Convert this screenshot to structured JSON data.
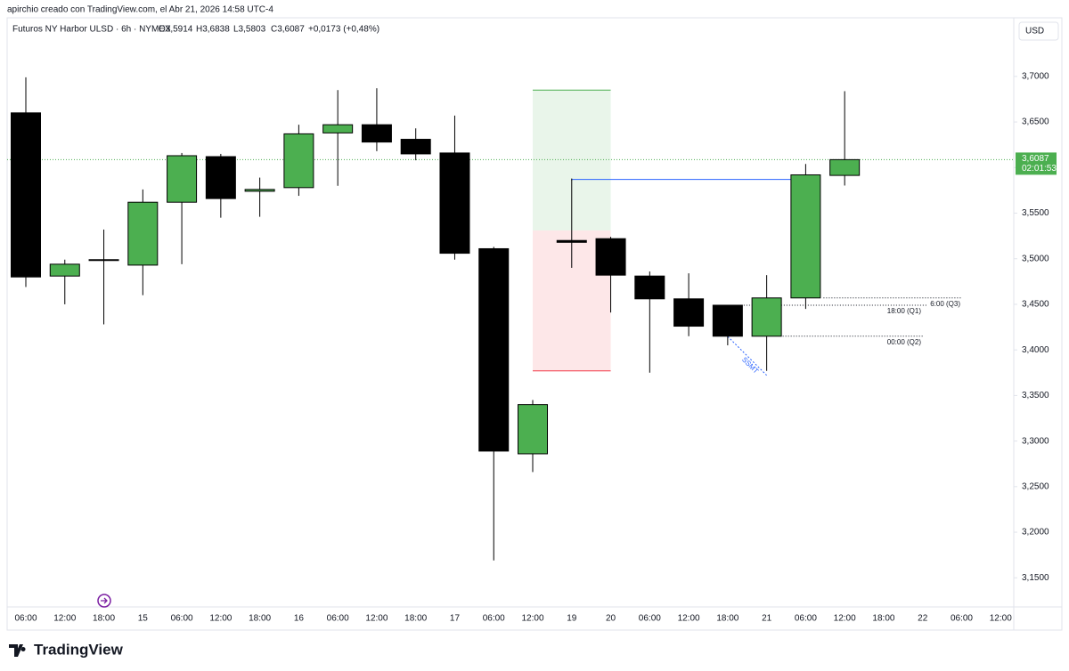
{
  "chart_data": {
    "type": "candlestick",
    "credit": "apirchio creado con TradingView.com, el Abr 21, 2026 14:58 UTC-4",
    "symbol": "Futuros NY Harbor ULSD · 6h · NYMEX",
    "ohlc_texts": [
      "O3,5914",
      "H3,6838",
      "L3,5803",
      "C3,6087",
      "+0,0173 (+0,48%)"
    ],
    "currency": "USD",
    "brand": "TradingView",
    "categories": [
      "06:00",
      "12:00",
      "18:00",
      "15",
      "06:00",
      "12:00",
      "18:00",
      "16",
      "06:00",
      "12:00",
      "18:00",
      "17",
      "06:00",
      "12:00",
      "19",
      "20",
      "06:00",
      "12:00",
      "18:00",
      "21",
      "06:00",
      "12:00",
      "18:00",
      "22",
      "06:00",
      "12:00"
    ],
    "open": [
      3.66,
      3.481,
      3.499,
      3.493,
      3.562,
      3.612,
      3.574,
      3.578,
      3.638,
      3.647,
      3.631,
      3.616,
      3.511,
      3.286,
      3.52,
      3.522,
      3.481,
      3.456,
      3.449,
      3.415,
      3.457,
      3.5914,
      null,
      null,
      null,
      null
    ],
    "high": [
      3.699,
      3.499,
      3.532,
      3.576,
      3.616,
      3.615,
      3.589,
      3.647,
      3.685,
      3.687,
      3.643,
      3.657,
      3.513,
      3.345,
      3.588,
      3.524,
      3.486,
      3.484,
      3.449,
      3.482,
      3.604,
      3.6838,
      null,
      null,
      null,
      null
    ],
    "low": [
      3.469,
      3.45,
      3.428,
      3.46,
      3.494,
      3.545,
      3.546,
      3.569,
      3.58,
      3.618,
      3.608,
      3.499,
      3.169,
      3.266,
      3.49,
      3.441,
      3.375,
      3.415,
      3.405,
      3.377,
      3.445,
      3.5803,
      null,
      null,
      null,
      null
    ],
    "close": [
      3.48,
      3.494,
      3.499,
      3.562,
      3.613,
      3.566,
      3.576,
      3.637,
      3.647,
      3.628,
      3.615,
      3.506,
      3.289,
      3.34,
      3.518,
      3.482,
      3.456,
      3.426,
      3.415,
      3.457,
      3.592,
      3.6087,
      null,
      null,
      null,
      null
    ],
    "up_color": "#4caf50",
    "down_color": "#000000",
    "ylim": [
      3.12,
      3.735
    ],
    "yticks": [
      {
        "value": 3.15,
        "label": "3,1500"
      },
      {
        "value": 3.2,
        "label": "3,2000"
      },
      {
        "value": 3.25,
        "label": "3,2500"
      },
      {
        "value": 3.3,
        "label": "3,3000"
      },
      {
        "value": 3.35,
        "label": "3,3500"
      },
      {
        "value": 3.4,
        "label": "3,4000"
      },
      {
        "value": 3.45,
        "label": "3,4500"
      },
      {
        "value": 3.5,
        "label": "3,5000"
      },
      {
        "value": 3.55,
        "label": "3,5500"
      },
      {
        "value": 3.6,
        "label": "3,6000"
      },
      {
        "value": 3.65,
        "label": "3,6500"
      },
      {
        "value": 3.7,
        "label": "3,7000"
      }
    ],
    "last_price": {
      "value": 3.6087,
      "label": "3,6087"
    },
    "countdown": "02:01:53",
    "position": {
      "target": 3.685,
      "entry": 3.531,
      "stop": 3.377
    },
    "break_level": 3.587,
    "levels": [
      {
        "label": "6:00 (Q3)",
        "value": 3.457
      },
      {
        "label": "18:00 (Q1)",
        "value": 3.449
      },
      {
        "label": "00:00 (Q2)",
        "value": 3.415
      }
    ],
    "smt_label": "SSMT"
  }
}
